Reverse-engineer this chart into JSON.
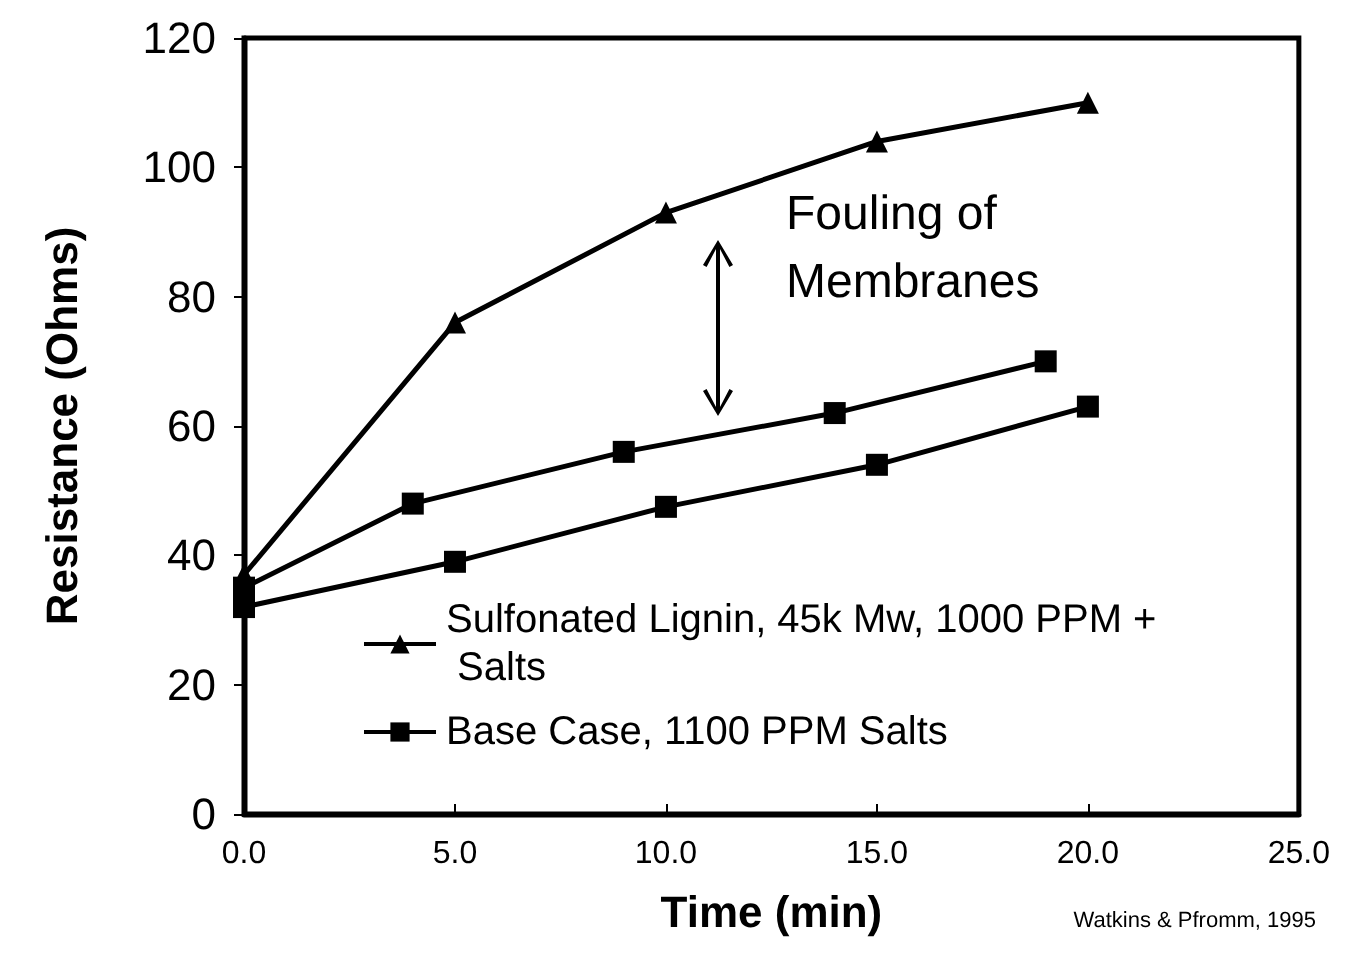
{
  "chart_data": {
    "type": "line",
    "xlabel": "Time (min)",
    "ylabel": "Resistance (Ohms)",
    "xlim": [
      0,
      25
    ],
    "xticks": [
      {
        "value": 0,
        "label": "0.0"
      },
      {
        "value": 5,
        "label": "5.0"
      },
      {
        "value": 10,
        "label": "10.0"
      },
      {
        "value": 15,
        "label": "15.0"
      },
      {
        "value": 20,
        "label": "20.0"
      },
      {
        "value": 25,
        "label": "25.0"
      }
    ],
    "ylim": [
      0,
      120
    ],
    "yticks": [
      0,
      20,
      40,
      60,
      80,
      100,
      120
    ],
    "series": [
      {
        "name": "Sulfonated Lignin, 45k Mw, 1000 PPM + Salts",
        "color": "#000000",
        "marker": "triangle",
        "x": [
          0,
          5,
          10,
          15,
          20
        ],
        "values": [
          37,
          76,
          93,
          104,
          110
        ]
      },
      {
        "name": "Base Case, 1100 PPM Salts",
        "color": "#000000",
        "marker": "square",
        "x": [
          0,
          4,
          9,
          14,
          19
        ],
        "values": [
          35,
          48,
          56,
          62,
          70
        ]
      },
      {
        "color": "#000000",
        "marker": "square",
        "x": [
          0,
          5,
          10,
          15,
          20
        ],
        "values": [
          32,
          39,
          47.5,
          54,
          63
        ]
      }
    ],
    "annotations": [
      "Fouling of Membranes",
      "Watkins & Pfromm, 1995"
    ],
    "grid": false,
    "legend": "bottom left",
    "line_style": "solid"
  }
}
